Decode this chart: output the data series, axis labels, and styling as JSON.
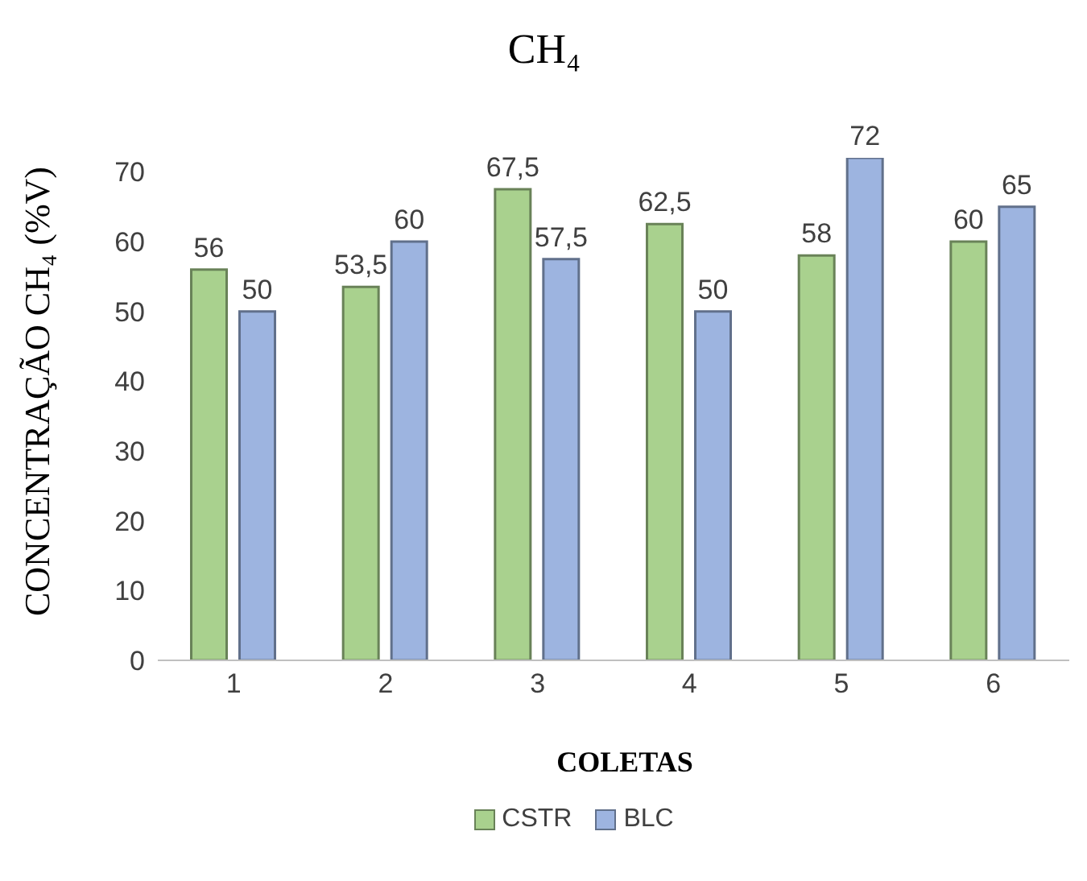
{
  "chart_data": {
    "type": "bar",
    "title": "CH₄",
    "xlabel": "COLETAS",
    "ylabel": "CONCENTRAÇÃO CH₄ (%V)",
    "categories": [
      "1",
      "2",
      "3",
      "4",
      "5",
      "6"
    ],
    "series": [
      {
        "name": "CSTR",
        "color": "#a9d18e",
        "values": [
          56,
          53.5,
          67.5,
          62.5,
          58,
          60
        ],
        "value_labels": [
          "56",
          "53,5",
          "67,5",
          "62,5",
          "58",
          "60"
        ]
      },
      {
        "name": "BLC",
        "color": "#9db4e0",
        "values": [
          50,
          60,
          57.5,
          50,
          72,
          65
        ],
        "value_labels": [
          "50",
          "60",
          "57,5",
          "50",
          "72",
          "65"
        ]
      }
    ],
    "ylim": [
      0,
      72
    ],
    "yticks": [
      0,
      10,
      20,
      30,
      40,
      50,
      60,
      70
    ],
    "grid": false,
    "legend": "bottom"
  }
}
